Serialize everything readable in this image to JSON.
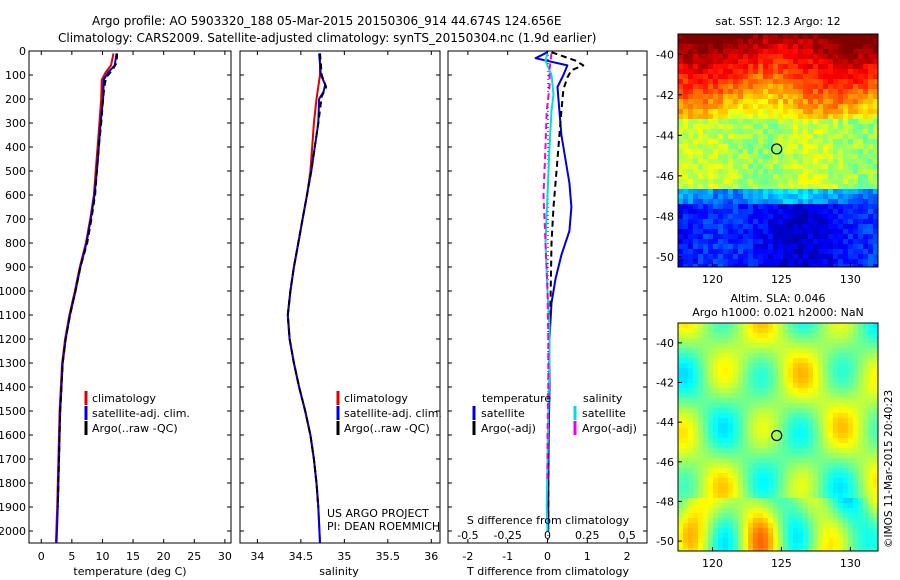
{
  "header": {
    "line1": "Argo profile: AO 5903320_188 05-Mar-2015 20150306_914 44.674S 124.656E",
    "line2": "Climatology: CARS2009. Satellite-adjusted climatology: synTS_20150304.nc (1.9d earlier)"
  },
  "colors": {
    "climatology": "#e00000",
    "satellite": "#0000dd",
    "argo": "#000000",
    "salinity_satellite": "#00dddd",
    "salinity_argo": "#ee00ee"
  },
  "chart_data": [
    {
      "type": "line",
      "panel": "temperature",
      "xlabel": "temperature (deg C)",
      "xlim": [
        -2,
        31
      ],
      "xticks": [
        "0",
        "5",
        "10",
        "15",
        "20",
        "25",
        "30"
      ],
      "ylim": [
        0,
        2050
      ],
      "y_inverted": true,
      "yticks": [
        "0",
        "100",
        "200",
        "300",
        "400",
        "500",
        "600",
        "700",
        "800",
        "900",
        "1000",
        "1100",
        "1200",
        "1300",
        "1400",
        "1500",
        "1600",
        "1700",
        "1800",
        "1900",
        "2000"
      ],
      "legend": [
        "climatology",
        "satellite-adj. clim.",
        "Argo(..raw -QC)"
      ],
      "series": [
        {
          "name": "climatology",
          "color": "climatology",
          "points": [
            [
              11.8,
              10
            ],
            [
              11.4,
              60
            ],
            [
              10.5,
              90
            ],
            [
              9.9,
              120
            ],
            [
              9.8,
              200
            ],
            [
              9.5,
              300
            ],
            [
              9.2,
              400
            ],
            [
              8.9,
              500
            ],
            [
              8.6,
              600
            ],
            [
              8.0,
              700
            ],
            [
              7.3,
              800
            ],
            [
              6.3,
              900
            ],
            [
              5.5,
              1000
            ],
            [
              4.6,
              1100
            ],
            [
              3.9,
              1200
            ],
            [
              3.4,
              1300
            ],
            [
              3.0,
              1500
            ],
            [
              2.8,
              1700
            ],
            [
              2.6,
              1900
            ],
            [
              2.4,
              2050
            ]
          ]
        },
        {
          "name": "satellite-adj. clim.",
          "color": "satellite",
          "points": [
            [
              12.3,
              10
            ],
            [
              12.0,
              60
            ],
            [
              10.9,
              90
            ],
            [
              10.2,
              120
            ],
            [
              10.1,
              200
            ],
            [
              9.7,
              300
            ],
            [
              9.4,
              400
            ],
            [
              9.1,
              500
            ],
            [
              8.7,
              600
            ],
            [
              8.1,
              700
            ],
            [
              7.4,
              800
            ],
            [
              6.4,
              900
            ],
            [
              5.6,
              1000
            ],
            [
              4.7,
              1100
            ],
            [
              4.0,
              1200
            ],
            [
              3.5,
              1300
            ],
            [
              3.1,
              1500
            ],
            [
              2.9,
              1700
            ],
            [
              2.7,
              1900
            ],
            [
              2.5,
              2050
            ]
          ]
        },
        {
          "name": "Argo(..raw -QC)",
          "color": "argo",
          "dashed": true,
          "points": [
            [
              12.4,
              10
            ],
            [
              12.3,
              50
            ],
            [
              11.6,
              80
            ],
            [
              10.6,
              110
            ],
            [
              10.3,
              150
            ],
            [
              10.1,
              200
            ],
            [
              9.8,
              300
            ],
            [
              9.4,
              400
            ],
            [
              9.1,
              500
            ],
            [
              8.8,
              600
            ],
            [
              8.2,
              700
            ],
            [
              7.5,
              800
            ],
            [
              6.4,
              900
            ],
            [
              5.6,
              1000
            ],
            [
              4.7,
              1100
            ],
            [
              4.0,
              1200
            ],
            [
              3.5,
              1300
            ],
            [
              3.1,
              1500
            ],
            [
              2.9,
              1700
            ],
            [
              2.7,
              1900
            ]
          ]
        }
      ]
    },
    {
      "type": "line",
      "panel": "salinity",
      "xlabel": "salinity",
      "xlim": [
        33.8,
        36.1
      ],
      "xticks": [
        "34",
        "34.5",
        "35",
        "35.5",
        "36"
      ],
      "ylim": [
        0,
        2050
      ],
      "y_inverted": true,
      "legend": [
        "climatology",
        "satellite-adj. clim.",
        "Argo(..raw -QC)"
      ],
      "annotation": [
        "US ARGO PROJECT",
        "PI: DEAN ROEMMICH"
      ],
      "series": [
        {
          "name": "climatology",
          "color": "climatology",
          "points": [
            [
              34.72,
              10
            ],
            [
              34.72,
              100
            ],
            [
              34.68,
              200
            ],
            [
              34.65,
              300
            ],
            [
              34.63,
              400
            ],
            [
              34.61,
              500
            ],
            [
              34.57,
              600
            ],
            [
              34.52,
              700
            ],
            [
              34.47,
              800
            ],
            [
              34.42,
              900
            ],
            [
              34.38,
              1000
            ],
            [
              34.35,
              1100
            ],
            [
              34.37,
              1200
            ],
            [
              34.42,
              1300
            ],
            [
              34.48,
              1400
            ],
            [
              34.55,
              1500
            ],
            [
              34.61,
              1600
            ],
            [
              34.65,
              1700
            ],
            [
              34.68,
              1800
            ],
            [
              34.7,
              1900
            ],
            [
              34.72,
              2050
            ]
          ]
        },
        {
          "name": "satellite-adj. clim.",
          "color": "satellite",
          "points": [
            [
              34.71,
              10
            ],
            [
              34.73,
              100
            ],
            [
              34.78,
              140
            ],
            [
              34.76,
              170
            ],
            [
              34.71,
              200
            ],
            [
              34.7,
              300
            ],
            [
              34.66,
              400
            ],
            [
              34.62,
              500
            ],
            [
              34.57,
              600
            ],
            [
              34.52,
              700
            ],
            [
              34.47,
              800
            ],
            [
              34.42,
              900
            ],
            [
              34.38,
              1000
            ],
            [
              34.35,
              1100
            ],
            [
              34.37,
              1200
            ],
            [
              34.42,
              1300
            ],
            [
              34.48,
              1400
            ],
            [
              34.55,
              1500
            ],
            [
              34.61,
              1600
            ],
            [
              34.65,
              1700
            ],
            [
              34.68,
              1800
            ],
            [
              34.7,
              1900
            ],
            [
              34.72,
              2050
            ]
          ]
        },
        {
          "name": "Argo(..raw -QC)",
          "color": "argo",
          "dashed": true,
          "points": [
            [
              34.72,
              10
            ],
            [
              34.74,
              100
            ],
            [
              34.79,
              150
            ],
            [
              34.74,
              190
            ],
            [
              34.7,
              300
            ],
            [
              34.66,
              400
            ],
            [
              34.62,
              500
            ],
            [
              34.57,
              600
            ],
            [
              34.52,
              700
            ],
            [
              34.47,
              800
            ],
            [
              34.42,
              900
            ],
            [
              34.38,
              1000
            ],
            [
              34.35,
              1100
            ],
            [
              34.37,
              1200
            ],
            [
              34.42,
              1300
            ],
            [
              34.48,
              1400
            ],
            [
              34.55,
              1500
            ],
            [
              34.61,
              1600
            ],
            [
              34.65,
              1700
            ],
            [
              34.68,
              1800
            ],
            [
              34.7,
              1900
            ]
          ]
        }
      ]
    },
    {
      "type": "line",
      "panel": "difference",
      "xlabel": "T difference from climatology",
      "xlabel_top": "S difference from climatology",
      "xlim": [
        -2.5,
        2.5
      ],
      "xticks": [
        "-2",
        "-1",
        "0",
        "1",
        "2"
      ],
      "xticks_top": [
        "-0.5",
        "-0.25",
        "0",
        "0.25",
        "0.5"
      ],
      "ylim": [
        0,
        2050
      ],
      "y_inverted": true,
      "legend_headers": [
        "temperature",
        "salinity"
      ],
      "legend": [
        {
          "label": "satellite",
          "color": "satellite"
        },
        {
          "label": "Argo(-adj)",
          "color": "argo"
        },
        {
          "label": "satellite",
          "color": "salinity_satellite"
        },
        {
          "label": "Argo(-adj)",
          "color": "salinity_argo"
        }
      ],
      "series": [
        {
          "name": "temperature satellite",
          "color": "satellite",
          "points": [
            [
              0.0,
              5
            ],
            [
              -0.3,
              30
            ],
            [
              0.5,
              60
            ],
            [
              0.4,
              100
            ],
            [
              0.25,
              150
            ],
            [
              0.3,
              250
            ],
            [
              0.35,
              350
            ],
            [
              0.45,
              450
            ],
            [
              0.55,
              550
            ],
            [
              0.6,
              650
            ],
            [
              0.55,
              750
            ],
            [
              0.35,
              850
            ],
            [
              0.2,
              950
            ],
            [
              0.1,
              1050
            ],
            [
              0.05,
              1200
            ],
            [
              0.05,
              1400
            ],
            [
              0.03,
              1600
            ],
            [
              0.02,
              1800
            ],
            [
              0.02,
              2000
            ]
          ]
        },
        {
          "name": "temperature Argo(-adj)",
          "color": "argo",
          "dashed": true,
          "points": [
            [
              0.1,
              5
            ],
            [
              0.7,
              40
            ],
            [
              0.9,
              60
            ],
            [
              0.6,
              80
            ],
            [
              0.5,
              110
            ],
            [
              0.4,
              160
            ],
            [
              0.35,
              250
            ],
            [
              0.3,
              350
            ],
            [
              0.25,
              450
            ],
            [
              0.2,
              550
            ],
            [
              0.15,
              650
            ],
            [
              0.1,
              800
            ],
            [
              0.08,
              1000
            ],
            [
              0.05,
              1200
            ],
            [
              0.03,
              1500
            ],
            [
              0.02,
              1800
            ],
            [
              0.02,
              1950
            ]
          ]
        },
        {
          "name": "salinity satellite",
          "color": "salinity_satellite",
          "points": [
            [
              0.0,
              10
            ],
            [
              -0.05,
              40
            ],
            [
              0.1,
              100
            ],
            [
              0.15,
              180
            ],
            [
              0.1,
              250
            ],
            [
              0.05,
              400
            ],
            [
              0.0,
              600
            ],
            [
              -0.05,
              800
            ],
            [
              0.0,
              1000
            ],
            [
              0.05,
              1150
            ],
            [
              0.05,
              1300
            ],
            [
              0.02,
              1500
            ],
            [
              0.0,
              1700
            ],
            [
              -0.02,
              1900
            ],
            [
              0.0,
              2000
            ]
          ]
        },
        {
          "name": "salinity Argo(-adj)",
          "color": "salinity_argo",
          "dashed": true,
          "points": [
            [
              0.1,
              10
            ],
            [
              0.05,
              80
            ],
            [
              0.05,
              150
            ],
            [
              -0.02,
              250
            ],
            [
              -0.05,
              400
            ],
            [
              -0.1,
              600
            ],
            [
              -0.05,
              800
            ],
            [
              0.0,
              1000
            ],
            [
              0.02,
              1200
            ],
            [
              0.02,
              1400
            ],
            [
              0.0,
              1600
            ],
            [
              0.0,
              1800
            ]
          ]
        }
      ]
    },
    {
      "type": "heatmap",
      "panel": "sst_map",
      "title": "sat. SST: 12.3 Argo: 12",
      "xticks": [
        "120",
        "125",
        "130"
      ],
      "yticks": [
        "-40",
        "-42",
        "-44",
        "-46",
        "-48",
        "-50"
      ],
      "xlim": [
        117.5,
        132
      ],
      "ylim": [
        -50.5,
        -39
      ],
      "marker": {
        "lon": 124.656,
        "lat": -44.674
      }
    },
    {
      "type": "heatmap",
      "panel": "sla_map",
      "title_line1": "Altim. SLA: 0.046",
      "title_line2": "Argo h1000: 0.021 h2000: NaN",
      "xticks": [
        "120",
        "125",
        "130"
      ],
      "yticks": [
        "-40",
        "-42",
        "-44",
        "-46",
        "-48",
        "-50"
      ],
      "xlim": [
        117.5,
        132
      ],
      "ylim": [
        -50.5,
        -39
      ],
      "marker": {
        "lon": 124.656,
        "lat": -44.674
      },
      "credit": "©IMOS 11-Mar-2015 20:40:23"
    }
  ]
}
